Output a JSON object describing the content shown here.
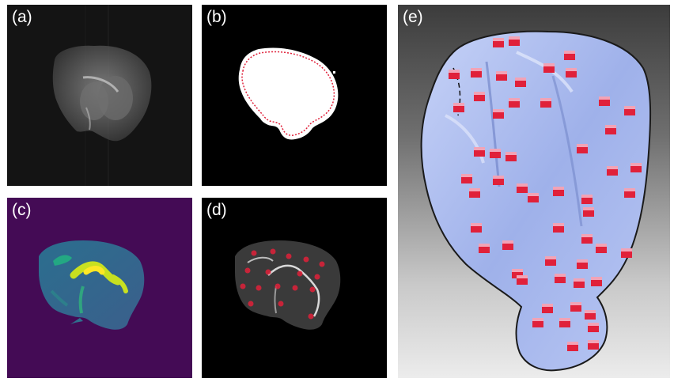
{
  "figure": {
    "panels": [
      {
        "id": "a",
        "label": "(a)",
        "content": "grayscale brain section image"
      },
      {
        "id": "b",
        "label": "(b)",
        "content": "binary mask with red dotted contour"
      },
      {
        "id": "c",
        "label": "(c)",
        "content": "viridis heatmap of brain section"
      },
      {
        "id": "d",
        "label": "(d)",
        "content": "brain section with red markers"
      },
      {
        "id": "e",
        "label": "(e)",
        "content": "3D rendered brain surface with red cubes"
      }
    ]
  },
  "colors": {
    "marker_red": "#e0213a",
    "mask_white": "#ffffff",
    "heat_background": "#440b55",
    "surface_blue": "#a9b9ef"
  }
}
